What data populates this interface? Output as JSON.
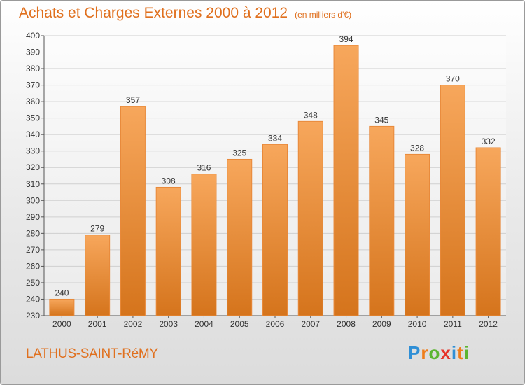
{
  "chart_data": {
    "type": "bar",
    "title": "Achats et Charges Externes 2000 à 2012",
    "subtitle": "(en milliers d'€)",
    "categories": [
      "2000",
      "2001",
      "2002",
      "2003",
      "2004",
      "2005",
      "2006",
      "2007",
      "2008",
      "2009",
      "2010",
      "2011",
      "2012"
    ],
    "values": [
      240,
      279,
      357,
      308,
      316,
      325,
      334,
      348,
      394,
      345,
      328,
      370,
      332
    ],
    "ylim": [
      230,
      400
    ],
    "yticks": [
      230,
      240,
      250,
      260,
      270,
      280,
      290,
      300,
      310,
      320,
      330,
      340,
      350,
      360,
      370,
      380,
      390,
      400
    ],
    "grid": true,
    "colors": {
      "bar_top": "#f7a75c",
      "bar_bottom": "#d5741c",
      "bar_edge": "#e8893a",
      "text": "#e0701e"
    }
  },
  "footer": {
    "town": "LATHUS-SAINT-RéMY",
    "logo_letters": [
      "P",
      "r",
      "o",
      "x",
      "i",
      "t",
      "i"
    ],
    "logo_colors": [
      "#2f8fd6",
      "#ef7d1a",
      "#5cb531",
      "#e63329",
      "#2f8fd6",
      "#ef7d1a",
      "#5cb531"
    ]
  }
}
